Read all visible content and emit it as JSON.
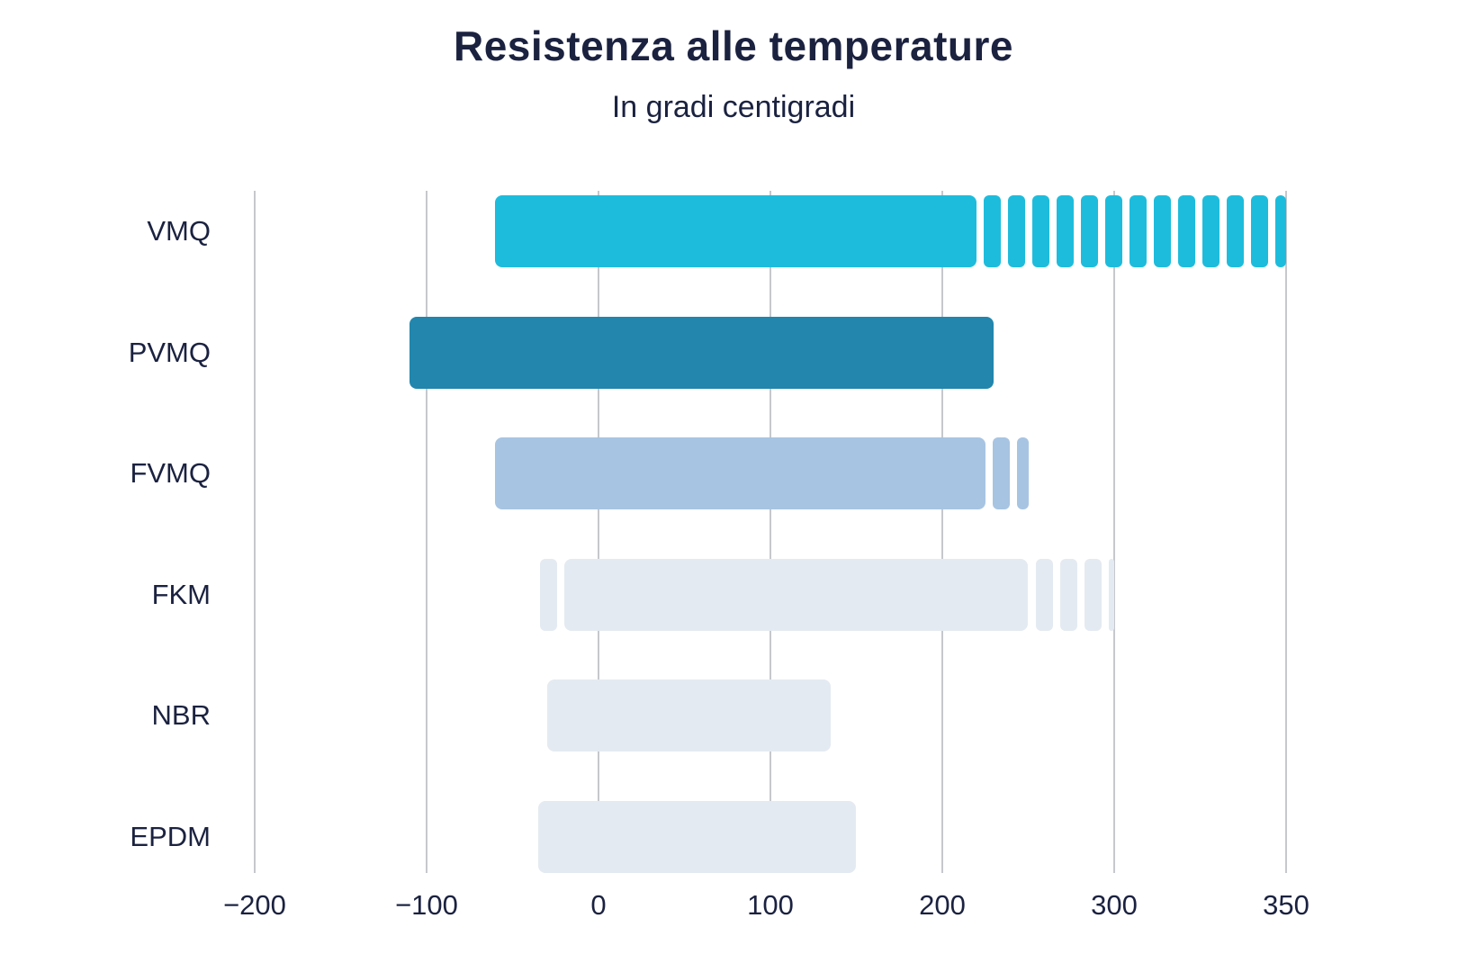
{
  "title": "Resistenza alle temperature",
  "subtitle": "In gradi centigradi",
  "colors": {
    "background": "#FFFFFF",
    "text": "#1B2240",
    "gridline": "#C5C8CC",
    "vmq": "#1EBCDC",
    "pvmq": "#2286AD",
    "fvmq": "#A7C4E2",
    "pale": "#E4EAF1"
  },
  "chart_data": {
    "type": "bar",
    "orientation": "horizontal",
    "title": "Resistenza alle temperature",
    "subtitle": "In gradi centigradi",
    "unit": "gradi centigradi (°C)",
    "grid": "vertical",
    "legend": null,
    "x_ticks": [
      -200,
      -100,
      0,
      100,
      200,
      300,
      350
    ],
    "x_tick_labels": [
      "−200",
      "−100",
      "0",
      "100",
      "200",
      "300",
      "350"
    ],
    "x_axis_note": "tick equidistanti; l'ultimo intervallo 300–350 copre 50 gradi (scala compressa)",
    "xlim": [
      -200,
      350
    ],
    "categories": [
      "VMQ",
      "PVMQ",
      "FVMQ",
      "FKM",
      "NBR",
      "EPDM"
    ],
    "bars": [
      {
        "label": "VMQ",
        "solid_range": [
          -60,
          220
        ],
        "dashed_range_high": [
          220,
          350
        ],
        "color": "#1EBCDC"
      },
      {
        "label": "PVMQ",
        "solid_range": [
          -110,
          230
        ],
        "color": "#2286AD"
      },
      {
        "label": "FVMQ",
        "solid_range": [
          -60,
          225
        ],
        "dashed_range_high": [
          225,
          250
        ],
        "color": "#A7C4E2"
      },
      {
        "label": "FKM",
        "dashed_range_low": [
          -35,
          -20
        ],
        "solid_range": [
          -20,
          250
        ],
        "dashed_range_high": [
          250,
          300
        ],
        "color": "#E4EAF1"
      },
      {
        "label": "NBR",
        "solid_range": [
          -30,
          135
        ],
        "color": "#E4EAF1"
      },
      {
        "label": "EPDM",
        "solid_range": [
          -35,
          150
        ],
        "color": "#E4EAF1"
      }
    ]
  }
}
